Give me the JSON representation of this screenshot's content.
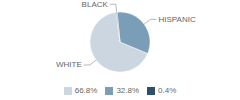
{
  "chart_data": {
    "type": "pie",
    "categories": [
      "WHITE",
      "HISPANIC",
      "BLACK"
    ],
    "values": [
      66.8,
      32.8,
      0.4
    ],
    "value_labels": [
      "66.8%",
      "32.8%",
      "0.4%"
    ],
    "colors": [
      "#ccd6e0",
      "#7a9db8",
      "#2e506a"
    ],
    "legend": "bottom"
  }
}
